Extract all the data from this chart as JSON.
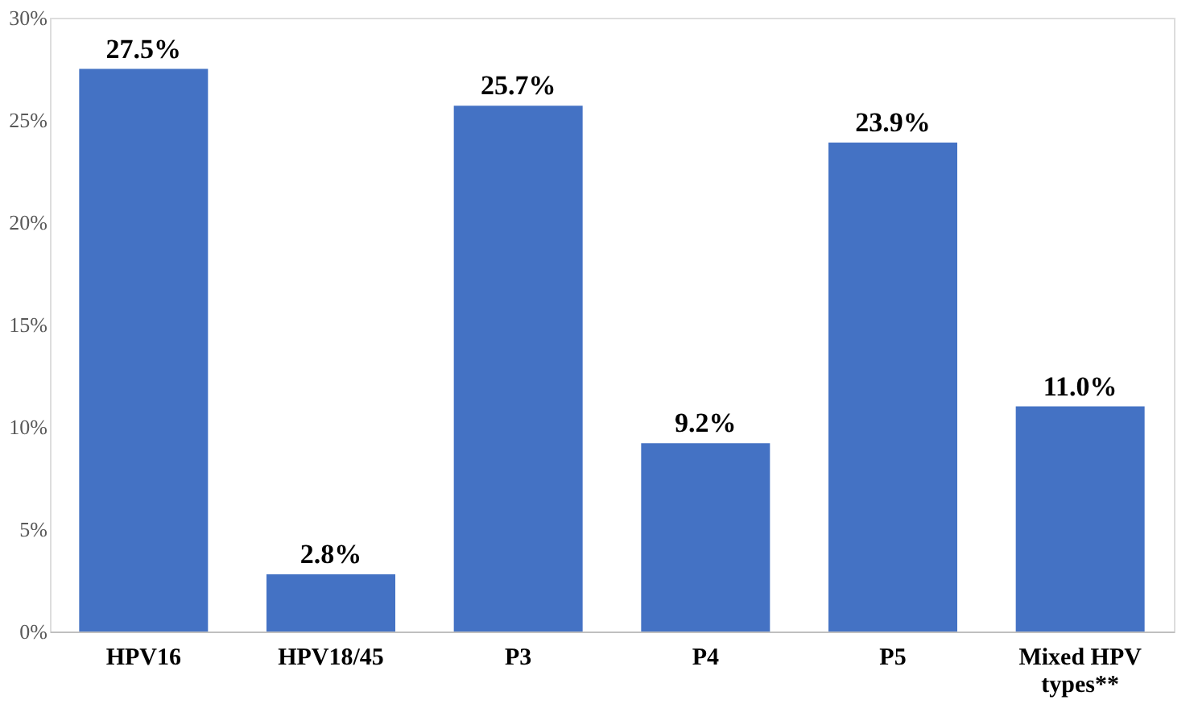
{
  "chart_data": {
    "type": "bar",
    "categories": [
      "HPV16",
      "HPV18/45",
      "P3",
      "P4",
      "P5",
      "Mixed HPV types**"
    ],
    "values": [
      27.5,
      2.8,
      25.7,
      9.2,
      23.9,
      11.0
    ],
    "value_labels": [
      "27.5%",
      "2.8%",
      "25.7%",
      "9.2%",
      "23.9%",
      "11.0%"
    ],
    "color": "#4472c4",
    "ylim": [
      0,
      30
    ],
    "yticks": [
      {
        "value": 0,
        "label": "0%"
      },
      {
        "value": 5,
        "label": "5%"
      },
      {
        "value": 10,
        "label": "10%"
      },
      {
        "value": 15,
        "label": "15%"
      },
      {
        "value": 20,
        "label": "20%"
      },
      {
        "value": 25,
        "label": "25%"
      },
      {
        "value": 30,
        "label": "30%"
      }
    ],
    "grid": false
  }
}
